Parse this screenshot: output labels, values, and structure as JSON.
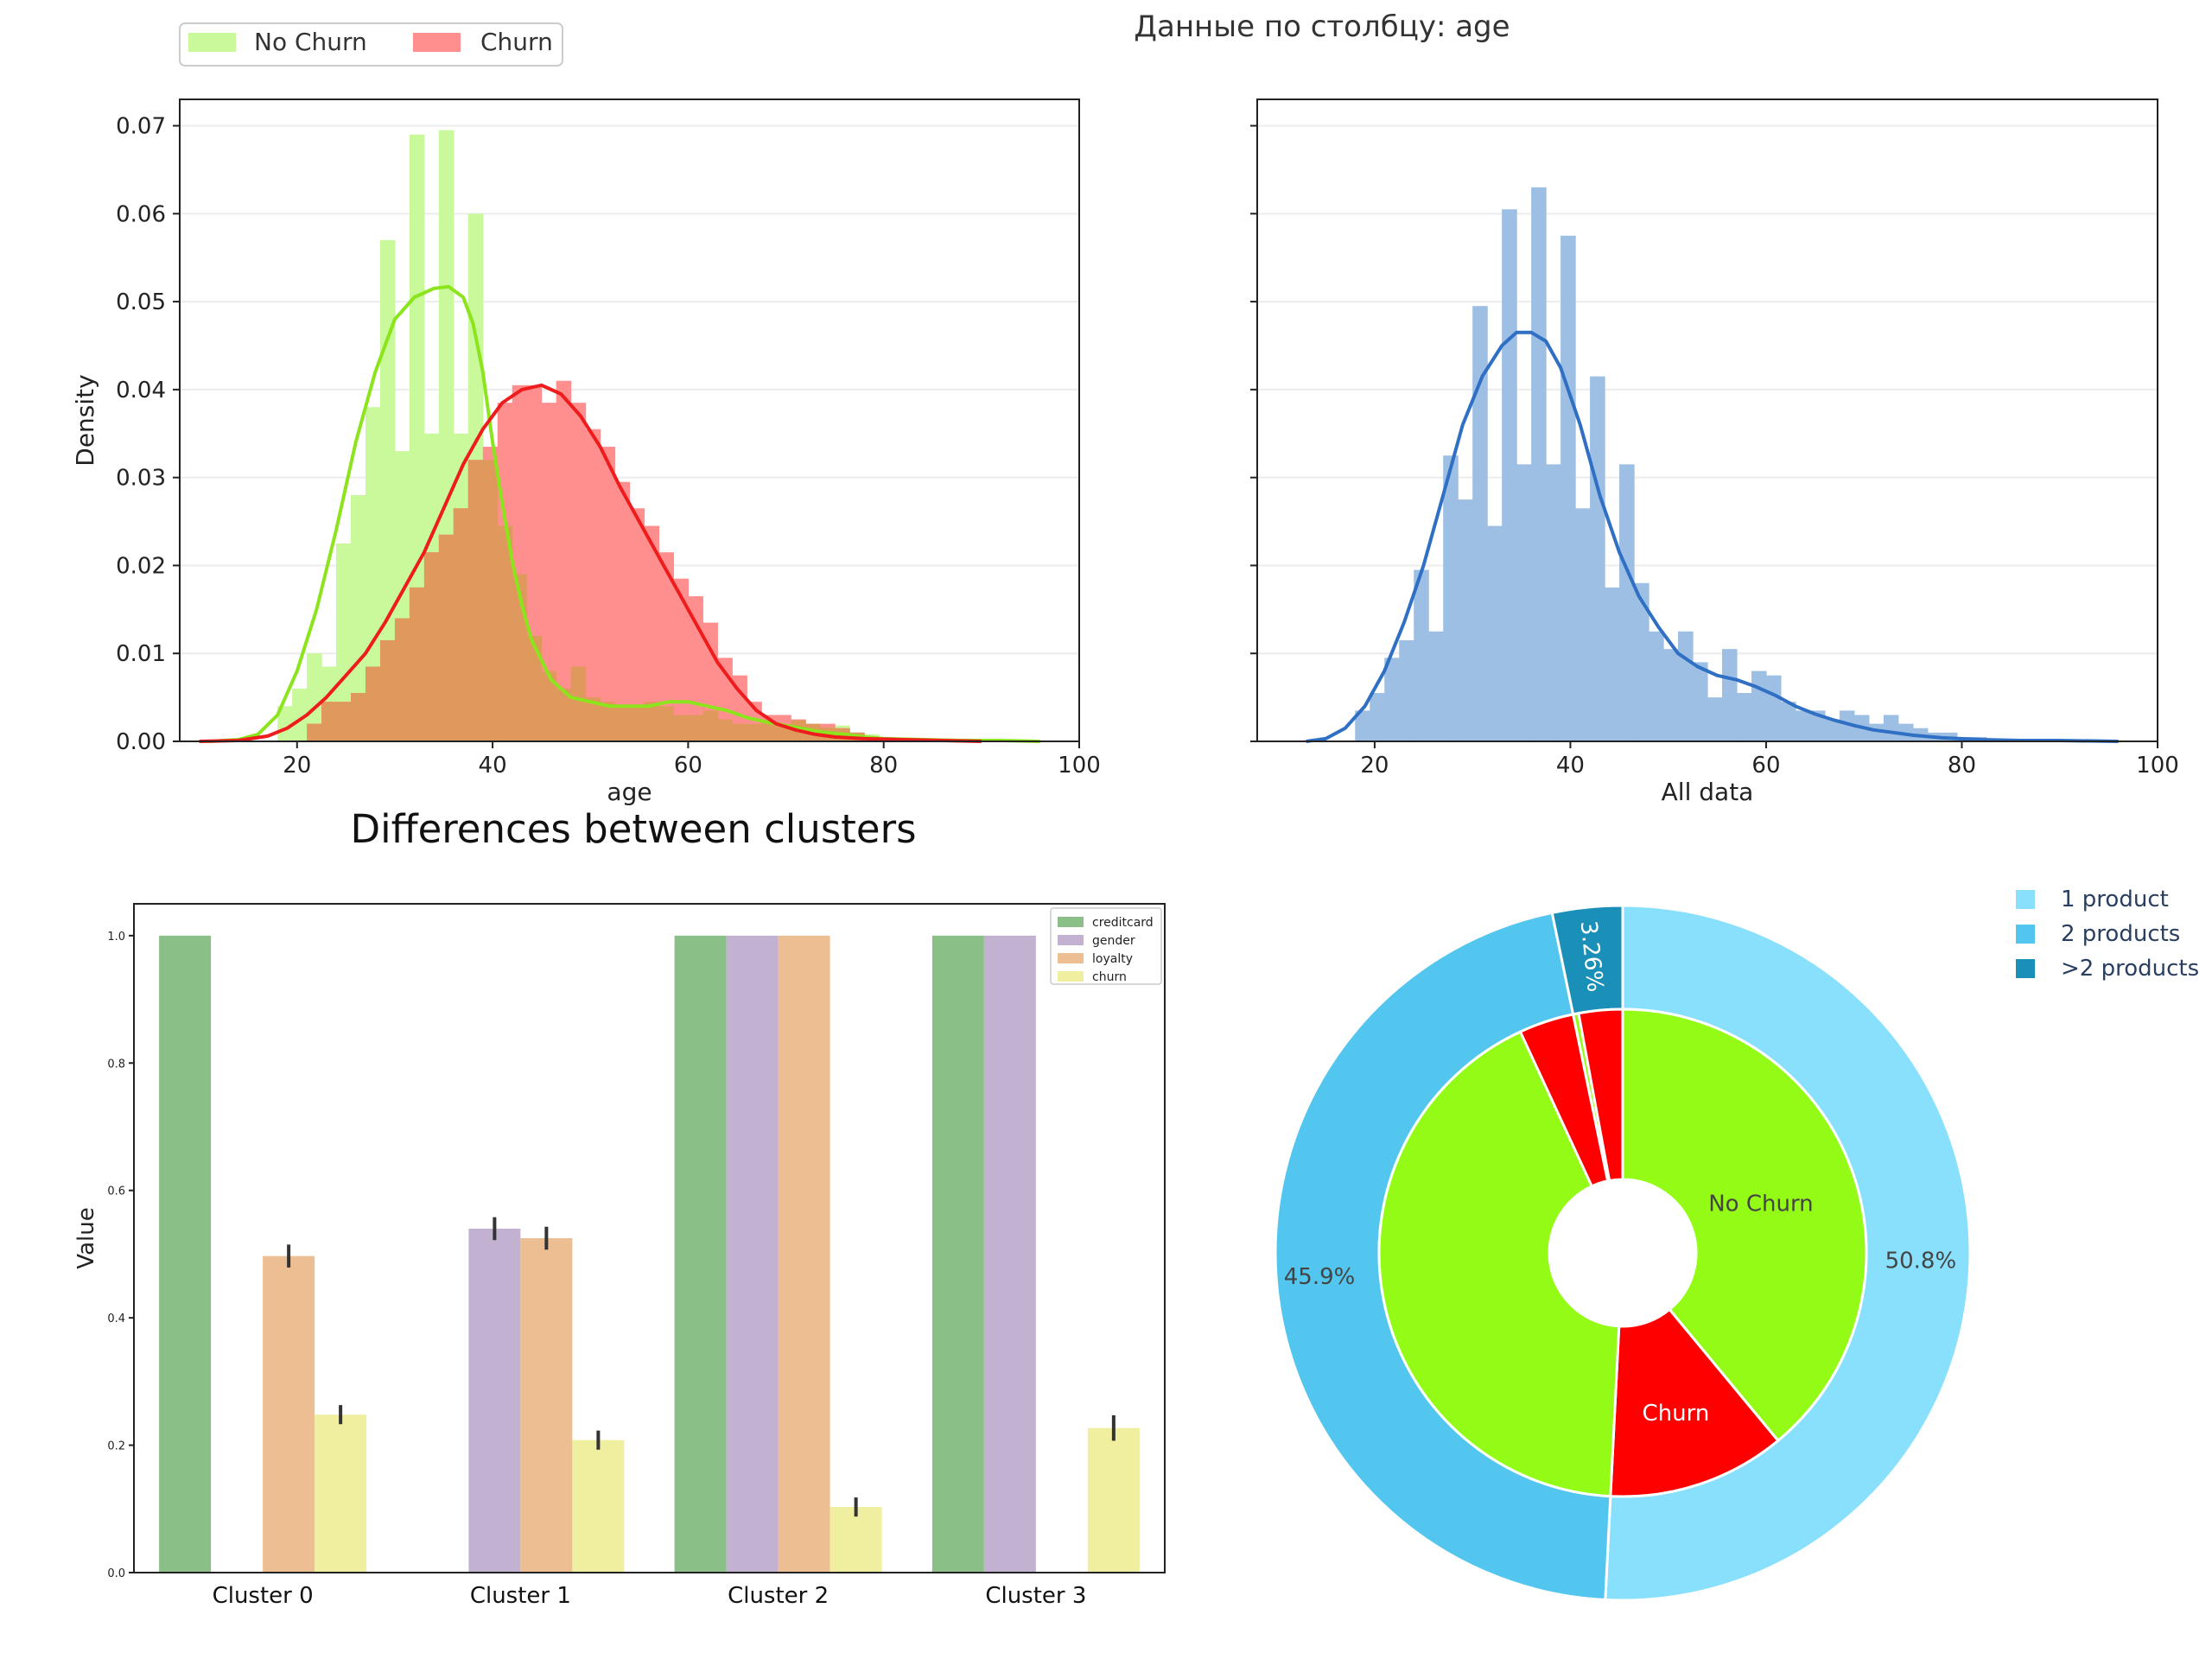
{
  "page_title": "Данные по столбцу: age",
  "colors": {
    "no_churn_hist": "#c9f99b",
    "churn_hist": "#ff8f8f",
    "overlap_hist": "#e0995c",
    "no_churn_kde": "#8be41c",
    "churn_kde": "#ee1c1c",
    "all_hist": "#9dbfe4",
    "all_kde": "#2f6fc4",
    "creditcard": "#8abf88",
    "gender": "#c2b1d1",
    "loyalty": "#edbe91",
    "churn_bar": "#f0ee9f",
    "one_product": "#88e0fd",
    "two_products": "#53c6ef",
    "more_products": "#1a8fb8",
    "no_churn_pie": "#93fb16",
    "churn_pie": "#ff0000"
  },
  "chart_data": [
    {
      "type": "bar",
      "subtype": "histogram-with-kde",
      "title": "",
      "xlabel": "age",
      "ylabel": "Density",
      "xlim": [
        8,
        100
      ],
      "ylim": [
        0,
        0.073
      ],
      "xticks": [
        "20",
        "40",
        "60",
        "80",
        "100"
      ],
      "yticks": [
        "0.00",
        "0.01",
        "0.02",
        "0.03",
        "0.04",
        "0.05",
        "0.06",
        "0.07"
      ],
      "grid": "horizontal",
      "legend_position": "top-left, outside",
      "legend": [
        "No Churn",
        "Churn"
      ],
      "bin_width": 1.5,
      "series": [
        {
          "name": "No Churn",
          "bin_starts": [
            18,
            19.5,
            21,
            22.5,
            24,
            25.5,
            27,
            28.5,
            30,
            31.5,
            33,
            34.5,
            36,
            37.5,
            39,
            40.5,
            42,
            43.5,
            45,
            46.5,
            48,
            49.5,
            51,
            52.5,
            54,
            55.5,
            57,
            58.5,
            60,
            61.5,
            63,
            64.5,
            66,
            67.5,
            69,
            70.5,
            72,
            73.5,
            75,
            76.5,
            78,
            79.5
          ],
          "values": [
            0.004,
            0.006,
            0.01,
            0.0085,
            0.0225,
            0.028,
            0.038,
            0.057,
            0.033,
            0.069,
            0.035,
            0.0695,
            0.035,
            0.06,
            0.032,
            0.0245,
            0.019,
            0.012,
            0.008,
            0.006,
            0.0085,
            0.005,
            0.0045,
            0.004,
            0.004,
            0.0045,
            0.004,
            0.003,
            0.003,
            0.0035,
            0.0025,
            0.002,
            0.002,
            0.0022,
            0.0018,
            0.0024,
            0.002,
            0.0016,
            0.0018,
            0.001,
            0.0008,
            0.0005
          ],
          "kde_x": [
            11,
            14,
            16,
            18,
            20,
            22,
            24,
            26,
            28,
            30,
            32,
            34,
            35.5,
            37,
            38,
            39,
            40,
            41,
            42,
            43,
            44,
            46,
            48,
            50,
            52,
            54,
            56,
            58,
            60,
            62,
            64,
            66,
            68,
            70,
            72,
            74,
            76,
            78,
            80,
            84,
            88,
            92,
            96
          ],
          "kde_y": [
            0,
            0.0002,
            0.0008,
            0.003,
            0.008,
            0.015,
            0.024,
            0.034,
            0.042,
            0.048,
            0.0505,
            0.0515,
            0.0517,
            0.0505,
            0.0475,
            0.042,
            0.034,
            0.027,
            0.0205,
            0.0155,
            0.0115,
            0.007,
            0.005,
            0.0045,
            0.004,
            0.004,
            0.004,
            0.0045,
            0.0045,
            0.004,
            0.0035,
            0.0027,
            0.0022,
            0.0018,
            0.0014,
            0.001,
            0.0008,
            0.0005,
            0.0003,
            0.0002,
            0.0001,
            0.0001,
            0
          ]
        },
        {
          "name": "Churn",
          "bin_starts": [
            21,
            22.5,
            24,
            25.5,
            27,
            28.5,
            30,
            31.5,
            33,
            34.5,
            36,
            37.5,
            39,
            40.5,
            42,
            43.5,
            45,
            46.5,
            48,
            49.5,
            51,
            52.5,
            54,
            55.5,
            57,
            58.5,
            60,
            61.5,
            63,
            64.5,
            66,
            67.5,
            69,
            70.5,
            72,
            73.5,
            75,
            76.5
          ],
          "values": [
            0.002,
            0.0045,
            0.0045,
            0.0055,
            0.0085,
            0.0115,
            0.014,
            0.0175,
            0.0215,
            0.0235,
            0.0265,
            0.032,
            0.0335,
            0.0385,
            0.0405,
            0.0405,
            0.0385,
            0.041,
            0.0385,
            0.0355,
            0.0335,
            0.0295,
            0.0265,
            0.0245,
            0.0215,
            0.0185,
            0.0165,
            0.0135,
            0.0095,
            0.0075,
            0.0045,
            0.003,
            0.003,
            0.0025,
            0.002,
            0.002,
            0.0015,
            0.001
          ],
          "kde_x": [
            10,
            14,
            17,
            19,
            21,
            23,
            25,
            27,
            29,
            31,
            33,
            35,
            37,
            39,
            41,
            43,
            45,
            47,
            49,
            51,
            53,
            55,
            57,
            59,
            61,
            63,
            65,
            67,
            69,
            71,
            73,
            75,
            78,
            82,
            86,
            90
          ],
          "kde_y": [
            0,
            0.0001,
            0.0006,
            0.0015,
            0.003,
            0.005,
            0.0075,
            0.01,
            0.0135,
            0.0175,
            0.0215,
            0.0265,
            0.0315,
            0.0355,
            0.0385,
            0.04,
            0.0405,
            0.0395,
            0.037,
            0.0335,
            0.029,
            0.025,
            0.021,
            0.017,
            0.013,
            0.009,
            0.006,
            0.0035,
            0.002,
            0.0013,
            0.0008,
            0.0005,
            0.0003,
            0.0002,
            0.0001,
            0
          ]
        }
      ]
    },
    {
      "type": "bar",
      "subtype": "histogram-with-kde",
      "title": "",
      "xlabel": "All data",
      "ylabel": "",
      "xlim": [
        8,
        100
      ],
      "ylim": [
        0,
        0.073
      ],
      "xticks": [
        "20",
        "40",
        "60",
        "80",
        "100"
      ],
      "grid": "horizontal",
      "bin_width": 1.5,
      "series": [
        {
          "name": "",
          "bin_starts": [
            18,
            19.5,
            21,
            22.5,
            24,
            25.5,
            27,
            28.5,
            30,
            31.5,
            33,
            34.5,
            36,
            37.5,
            39,
            40.5,
            42,
            43.5,
            45,
            46.5,
            48,
            49.5,
            51,
            52.5,
            54,
            55.5,
            57,
            58.5,
            60,
            61.5,
            63,
            64.5,
            66,
            67.5,
            69,
            70.5,
            72,
            73.5,
            75,
            76.5,
            78,
            79.5,
            81,
            82.5
          ],
          "values": [
            0.0035,
            0.0055,
            0.0095,
            0.0115,
            0.0195,
            0.0125,
            0.0325,
            0.0275,
            0.0495,
            0.0245,
            0.0605,
            0.0315,
            0.063,
            0.0315,
            0.0575,
            0.0265,
            0.0415,
            0.0175,
            0.0315,
            0.018,
            0.0125,
            0.0105,
            0.0125,
            0.009,
            0.005,
            0.0105,
            0.0055,
            0.008,
            0.0075,
            0.0045,
            0.0035,
            0.0035,
            0.0025,
            0.0035,
            0.003,
            0.002,
            0.003,
            0.002,
            0.0015,
            0.001,
            0.001,
            0.0005,
            0.0005,
            0.0003
          ],
          "kde_x": [
            13,
            15,
            17,
            19,
            21,
            23,
            25,
            27,
            29,
            31,
            33,
            34.5,
            36,
            37.5,
            39,
            41,
            43,
            45,
            47,
            49,
            51,
            53,
            55,
            57,
            59,
            61,
            63,
            65,
            67,
            69,
            71,
            73,
            75,
            78,
            82,
            86,
            90,
            96
          ],
          "kde_y": [
            0,
            0.0003,
            0.0015,
            0.004,
            0.008,
            0.0135,
            0.02,
            0.028,
            0.036,
            0.0415,
            0.045,
            0.0465,
            0.0465,
            0.0455,
            0.0425,
            0.036,
            0.028,
            0.0215,
            0.0165,
            0.013,
            0.01,
            0.0085,
            0.0075,
            0.007,
            0.0062,
            0.0052,
            0.004,
            0.0031,
            0.0024,
            0.0018,
            0.0013,
            0.001,
            0.0007,
            0.0004,
            0.0002,
            0.0001,
            0.0001,
            0
          ]
        }
      ]
    },
    {
      "type": "bar",
      "title": "Differences between clusters",
      "xlabel": "",
      "ylabel": "Value",
      "ylim": [
        0,
        1.05
      ],
      "yticks": [
        "0.0",
        "0.2",
        "0.4",
        "0.6",
        "0.8",
        "1.0"
      ],
      "grid": "off",
      "legend_position": "top-right",
      "categories": [
        "Cluster 0",
        "Cluster 1",
        "Cluster 2",
        "Cluster 3"
      ],
      "series": [
        {
          "name": "creditcard",
          "values": [
            1.0,
            0.0,
            1.0,
            1.0
          ],
          "errors": [
            0,
            0,
            0,
            0
          ]
        },
        {
          "name": "gender",
          "values": [
            0.0,
            0.54,
            1.0,
            1.0
          ],
          "errors": [
            0,
            0.018,
            0,
            0
          ]
        },
        {
          "name": "loyalty",
          "values": [
            0.497,
            0.525,
            1.0,
            0.0
          ],
          "errors": [
            0.018,
            0.018,
            0,
            0
          ]
        },
        {
          "name": "churn",
          "values": [
            0.248,
            0.208,
            0.103,
            0.227
          ],
          "errors": [
            0.015,
            0.015,
            0.015,
            0.02
          ]
        }
      ]
    },
    {
      "type": "pie",
      "subtype": "nested-donut",
      "title": "",
      "legend_position": "top-right, outside",
      "legend": [
        "1 product",
        "2 products",
        ">2 products"
      ],
      "outer": [
        {
          "label": "1 product",
          "value": 50.8,
          "text": "50.8%"
        },
        {
          "label": "2 products",
          "value": 45.94,
          "text": "45.9%"
        },
        {
          "label": ">2 products",
          "value": 3.26,
          "text": "3.26%"
        }
      ],
      "inner": [
        {
          "group": "1 product",
          "label": "No Churn",
          "value": 39.0,
          "text": "No Churn"
        },
        {
          "group": "1 product",
          "label": "Churn",
          "value": 11.8,
          "text": "Churn"
        },
        {
          "group": "2 products",
          "label": "No Churn",
          "value": 42.3,
          "text": ""
        },
        {
          "group": "2 products",
          "label": "Churn",
          "value": 3.64,
          "text": ""
        },
        {
          "group": ">2 products",
          "label": "No Churn",
          "value": 0.36,
          "text": ""
        },
        {
          "group": ">2 products",
          "label": "Churn",
          "value": 2.9,
          "text": ""
        }
      ]
    }
  ]
}
